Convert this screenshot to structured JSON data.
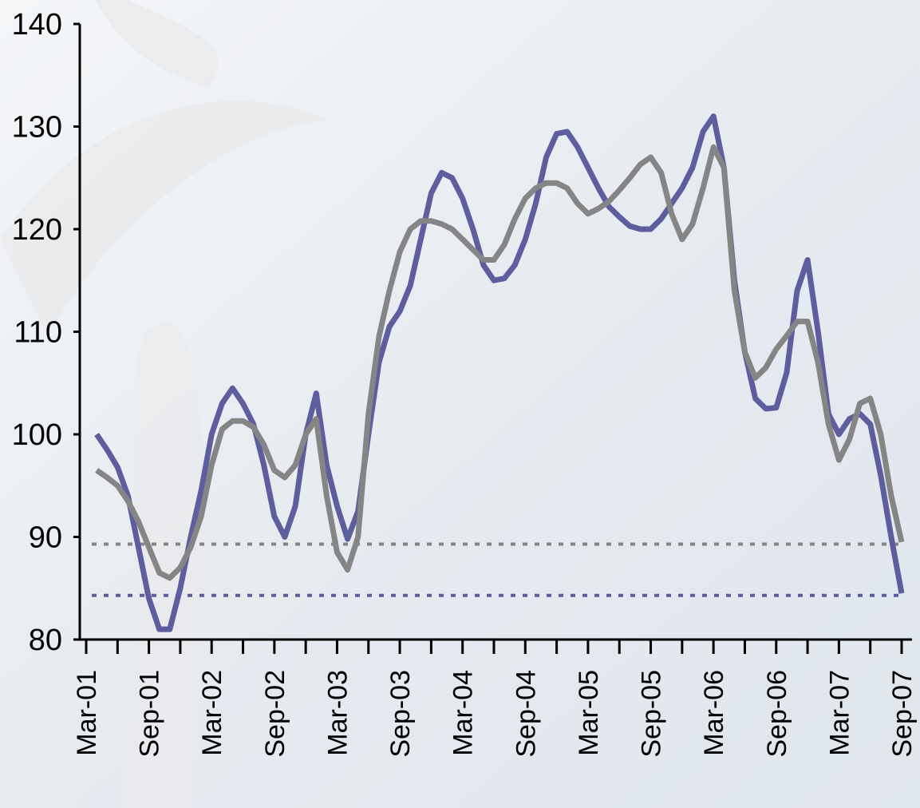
{
  "chart_data": {
    "type": "line",
    "categories": [
      "Mar-01",
      null,
      null,
      null,
      null,
      null,
      "Sep-01",
      null,
      null,
      null,
      null,
      null,
      "Mar-02",
      null,
      null,
      null,
      null,
      null,
      "Sep-02",
      null,
      null,
      null,
      null,
      null,
      "Mar-03",
      null,
      null,
      null,
      null,
      null,
      "Sep-03",
      null,
      null,
      null,
      null,
      null,
      "Mar-04",
      null,
      null,
      null,
      null,
      null,
      "Sep-04",
      null,
      null,
      null,
      null,
      null,
      "Mar-05",
      null,
      null,
      null,
      null,
      null,
      "Sep-05",
      null,
      null,
      null,
      null,
      null,
      "Mar-06",
      null,
      null,
      null,
      null,
      null,
      "Sep-06",
      null,
      null,
      null,
      null,
      null,
      "Mar-07",
      null,
      null,
      null,
      null,
      null,
      "Sep-07"
    ],
    "series": [
      {
        "color": "#5e5e9e",
        "values": [
          null,
          100,
          98.5,
          96.8,
          94,
          89,
          84,
          81,
          81,
          85,
          90,
          94.5,
          100,
          103,
          104.5,
          103,
          101,
          97,
          92,
          90,
          93,
          100,
          104,
          97,
          93,
          89.8,
          92.5,
          100,
          107,
          110.5,
          112,
          114.5,
          119,
          123.5,
          125.5,
          125,
          123,
          120,
          116.5,
          115,
          115.2,
          116.5,
          119,
          122.5,
          127,
          129.3,
          129.5,
          128,
          126,
          124,
          122.2,
          121.2,
          120.3,
          120,
          120,
          121,
          122.5,
          124,
          126,
          129.5,
          131,
          126,
          115,
          108,
          103.5,
          102.5,
          102.6,
          106,
          114,
          117,
          110,
          102,
          100,
          101.5,
          102,
          101,
          96,
          90,
          84.5
        ]
      },
      {
        "color": "#858585",
        "values": [
          null,
          96.5,
          95.8,
          95,
          93.5,
          91.5,
          89,
          86.5,
          86,
          87,
          89,
          92,
          97,
          100.5,
          101.3,
          101.3,
          100.7,
          99,
          96.5,
          95.8,
          97,
          100,
          101.5,
          94,
          88.5,
          86.8,
          90,
          102,
          109.5,
          114,
          117.8,
          120,
          120.8,
          120.8,
          120.5,
          120,
          119,
          118,
          117,
          117,
          118.5,
          121,
          123,
          124,
          124.5,
          124.5,
          124,
          122.5,
          121.5,
          122,
          122.7,
          123.8,
          125,
          126.3,
          127,
          125.5,
          121.5,
          119,
          120.5,
          124,
          128,
          126,
          114,
          108,
          105.5,
          106.5,
          108.3,
          109.6,
          111,
          111,
          107,
          101,
          97.5,
          99.5,
          103,
          103.5,
          100,
          94,
          89.5
        ]
      }
    ],
    "reference_lines": [
      {
        "value": 89.3,
        "color": "#858585"
      },
      {
        "value": 84.3,
        "color": "#5e5e9e"
      }
    ],
    "ylim": [
      80,
      140
    ],
    "yticks": [
      80,
      90,
      100,
      110,
      120,
      130,
      140
    ],
    "grid": false
  }
}
